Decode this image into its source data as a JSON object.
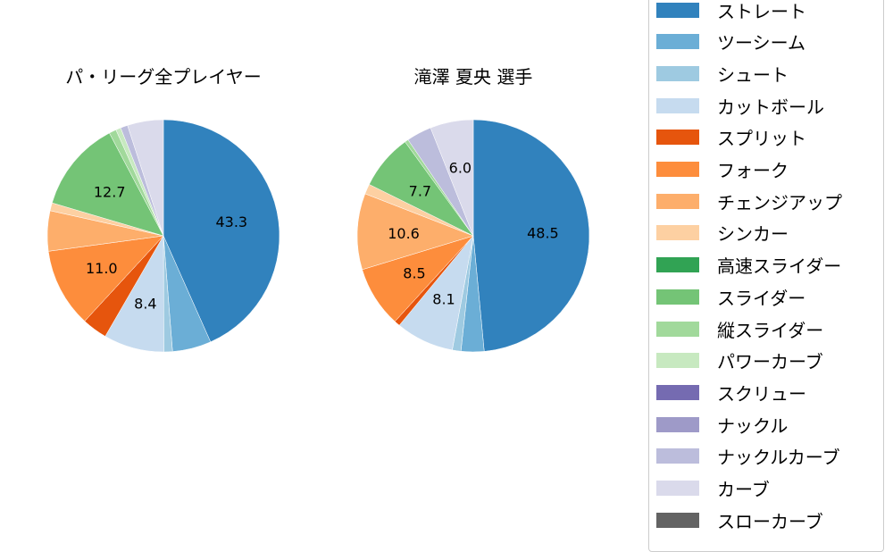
{
  "chart_data": [
    {
      "type": "pie",
      "title": "パ・リーグ全プレイヤー",
      "categories": [
        "ストレート",
        "ツーシーム",
        "シュート",
        "カットボール",
        "スプリット",
        "フォーク",
        "チェンジアップ",
        "シンカー",
        "スライダー",
        "縦スライダー",
        "パワーカーブ",
        "ナックルカーブ",
        "カーブ"
      ],
      "values": [
        43.3,
        5.4,
        1.2,
        8.4,
        3.5,
        11.0,
        5.6,
        1.1,
        12.7,
        1.0,
        0.7,
        1.0,
        5.0
      ],
      "labels_shown": [
        "43.3",
        "8.4",
        "11.0",
        "12.7"
      ]
    },
    {
      "type": "pie",
      "title": "滝澤 夏央  選手",
      "categories": [
        "ストレート",
        "ツーシーム",
        "シュート",
        "カットボール",
        "スプリット",
        "フォーク",
        "チェンジアップ",
        "シンカー",
        "スライダー",
        "縦スライダー",
        "ナックルカーブ",
        "カーブ"
      ],
      "values": [
        48.5,
        3.2,
        1.2,
        8.1,
        0.8,
        8.5,
        10.6,
        1.4,
        7.7,
        0.5,
        3.5,
        6.0
      ],
      "labels_shown": [
        "48.5",
        "8.1",
        "8.5",
        "10.6",
        "7.7",
        "6.0"
      ]
    }
  ],
  "legend": [
    {
      "label": "ストレート",
      "color": "#3182bd"
    },
    {
      "label": "ツーシーム",
      "color": "#6baed6"
    },
    {
      "label": "シュート",
      "color": "#9ecae1"
    },
    {
      "label": "カットボール",
      "color": "#c6dbef"
    },
    {
      "label": "スプリット",
      "color": "#e6550d"
    },
    {
      "label": "フォーク",
      "color": "#fd8d3c"
    },
    {
      "label": "チェンジアップ",
      "color": "#fdae6b"
    },
    {
      "label": "シンカー",
      "color": "#fdd0a2"
    },
    {
      "label": "高速スライダー",
      "color": "#31a354"
    },
    {
      "label": "スライダー",
      "color": "#74c476"
    },
    {
      "label": "縦スライダー",
      "color": "#a1d99b"
    },
    {
      "label": "パワーカーブ",
      "color": "#c7e9c0"
    },
    {
      "label": "スクリュー",
      "color": "#756bb1"
    },
    {
      "label": "ナックル",
      "color": "#9e9ac8"
    },
    {
      "label": "ナックルカーブ",
      "color": "#bcbddc"
    },
    {
      "label": "カーブ",
      "color": "#dadaeb"
    },
    {
      "label": "スローカーブ",
      "color": "#636363"
    }
  ],
  "titles": {
    "left": "パ・リーグ全プレイヤー",
    "right": "滝澤 夏央  選手"
  }
}
